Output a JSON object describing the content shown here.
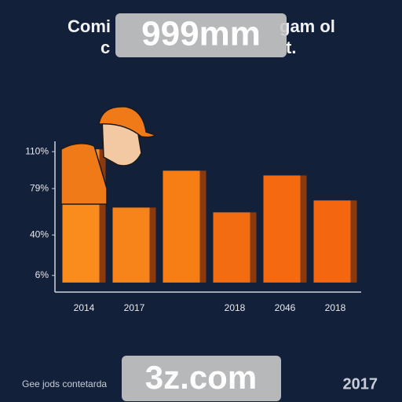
{
  "chart_data": {
    "type": "bar",
    "title_fragments": [
      "Comi",
      "gam ol"
    ],
    "subtitle_fragments": [
      "c",
      "t."
    ],
    "watermarks": [
      "999mm",
      "3z.com"
    ],
    "footer": "Gee jods contetarda",
    "footer_year": "2017",
    "categories": [
      "2014",
      "2017",
      null,
      "2018",
      "2046",
      "2018"
    ],
    "values": [
      112,
      63,
      94,
      59,
      90,
      69
    ],
    "colors": [
      "#f98c1c",
      "#f7841a",
      "#f77d15",
      "#f46c12",
      "#f56a10",
      "#f4660f"
    ],
    "ylim": [
      -8,
      120
    ],
    "yticks": [
      {
        "value": 6,
        "label": "6%"
      },
      {
        "value": 40,
        "label": "40%"
      },
      {
        "value": 79,
        "label": "79%"
      },
      {
        "value": 110,
        "label": "110%"
      }
    ],
    "grid": false
  }
}
